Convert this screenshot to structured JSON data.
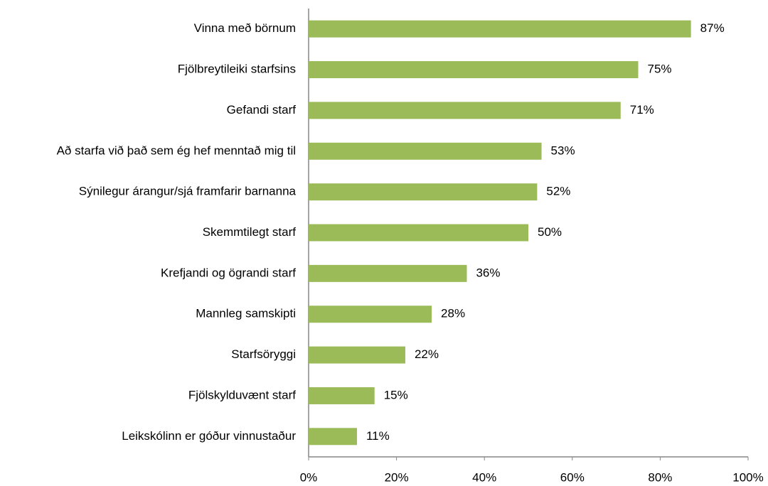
{
  "chart_data": {
    "type": "bar",
    "orientation": "horizontal",
    "categories": [
      "Vinna með börnum",
      "Fjölbreytileiki starfsins",
      "Gefandi starf",
      "Að starfa við það sem ég hef menntað mig til",
      "Sýnilegur árangur/sjá framfarir barnanna",
      "Skemmtilegt starf",
      "Krefjandi og ögrandi starf",
      "Mannleg samskipti",
      "Starfsöryggi",
      "Fjölskylduvænt starf",
      "Leikskólinn er góður vinnustaður"
    ],
    "values": [
      87,
      75,
      71,
      53,
      52,
      50,
      36,
      28,
      22,
      15,
      11
    ],
    "value_labels": [
      "87%",
      "75%",
      "71%",
      "53%",
      "52%",
      "50%",
      "36%",
      "28%",
      "22%",
      "15%",
      "11%"
    ],
    "color": "#9bbb59",
    "xlim": [
      0,
      100
    ],
    "xticks": [
      {
        "value": 0,
        "label": "0%"
      },
      {
        "value": 20,
        "label": "20%"
      },
      {
        "value": 40,
        "label": "40%"
      },
      {
        "value": 60,
        "label": "60%"
      },
      {
        "value": 80,
        "label": "80%"
      },
      {
        "value": 100,
        "label": "100%"
      }
    ],
    "grid": false
  }
}
